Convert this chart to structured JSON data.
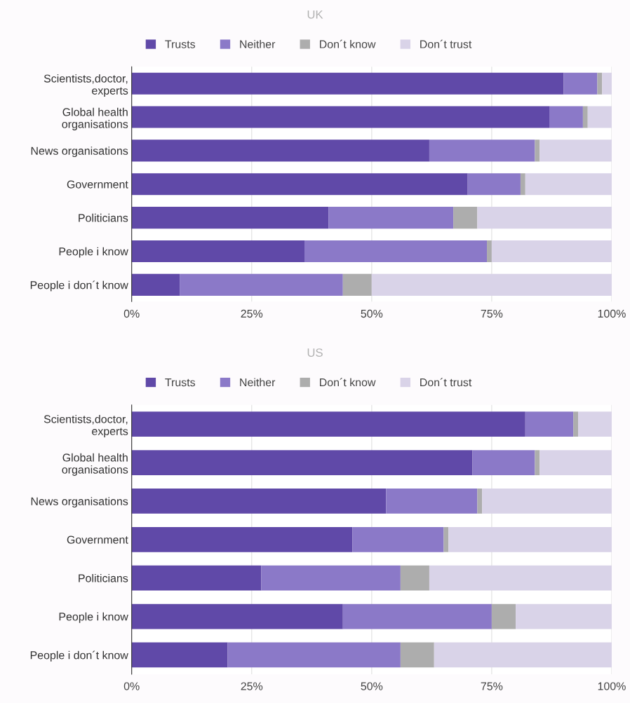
{
  "chart_data": [
    {
      "type": "bar",
      "orientation": "horizontal",
      "stacked": true,
      "title": "UK",
      "categories": [
        "Scientists,doctor,\nexperts",
        "Global health\norganisations",
        "News organisations",
        "Government",
        "Politicians",
        "People i know",
        "People i don´t know"
      ],
      "series": [
        {
          "name": "Trusts",
          "color": "#6049a8",
          "values": [
            90,
            87,
            62,
            70,
            41,
            36,
            10
          ]
        },
        {
          "name": "Neither",
          "color": "#8b79c8",
          "values": [
            7,
            7,
            22,
            11,
            26,
            38,
            34
          ]
        },
        {
          "name": "Don´t know",
          "color": "#adadad",
          "values": [
            1,
            1,
            1,
            1,
            5,
            1,
            6
          ]
        },
        {
          "name": "Don´t trust",
          "color": "#d9d3e8",
          "values": [
            2,
            5,
            15,
            18,
            28,
            25,
            50
          ]
        }
      ],
      "xlim": [
        0,
        100
      ],
      "xticks": [
        {
          "value": 0,
          "label": "0%"
        },
        {
          "value": 25,
          "label": "25%"
        },
        {
          "value": 50,
          "label": "50%"
        },
        {
          "value": 75,
          "label": "75%"
        },
        {
          "value": 100,
          "label": "100%"
        }
      ],
      "grid": "x",
      "legend": "top"
    },
    {
      "type": "bar",
      "orientation": "horizontal",
      "stacked": true,
      "title": "US",
      "categories": [
        "Scientists,doctor,\nexperts",
        "Global health\norganisations",
        "News organisations",
        "Government",
        "Politicians",
        "People i know",
        "People i don´t know"
      ],
      "series": [
        {
          "name": "Trusts",
          "color": "#6049a8",
          "values": [
            82,
            71,
            53,
            46,
            27,
            44,
            20
          ]
        },
        {
          "name": "Neither",
          "color": "#8b79c8",
          "values": [
            10,
            13,
            19,
            19,
            29,
            31,
            36
          ]
        },
        {
          "name": "Don´t know",
          "color": "#adadad",
          "values": [
            1,
            1,
            1,
            1,
            6,
            5,
            7
          ]
        },
        {
          "name": "Don´t trust",
          "color": "#d9d3e8",
          "values": [
            7,
            15,
            27,
            34,
            38,
            20,
            37
          ]
        }
      ],
      "xlim": [
        0,
        100
      ],
      "xticks": [
        {
          "value": 0,
          "label": "0%"
        },
        {
          "value": 25,
          "label": "25%"
        },
        {
          "value": 50,
          "label": "50%"
        },
        {
          "value": 75,
          "label": "75%"
        },
        {
          "value": 100,
          "label": "100%"
        }
      ],
      "grid": "x",
      "legend": "top"
    }
  ]
}
